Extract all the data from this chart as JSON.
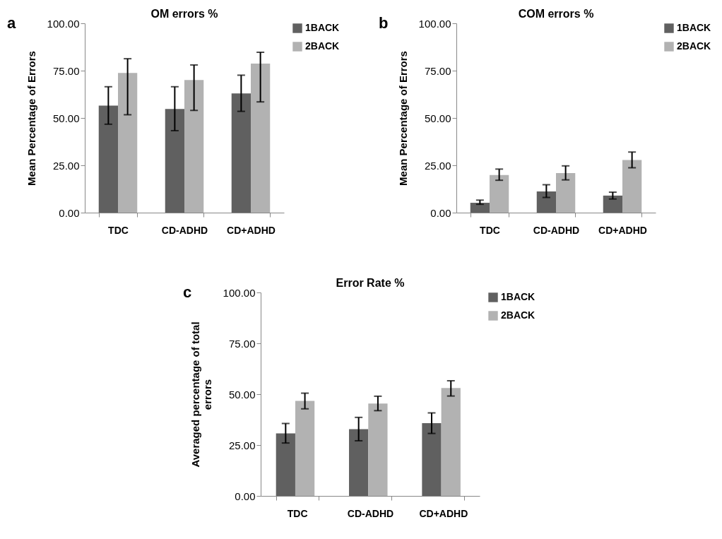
{
  "chart_data": [
    {
      "type": "bar",
      "title": "OM errors %",
      "ylabel": "Mean Percentage of Errors",
      "categories": [
        "TDC",
        "CD-ADHD",
        "CD+ADHD"
      ],
      "series": [
        {
          "name": "1BACK",
          "color": "#606060",
          "values": [
            56.5,
            54.8,
            63.0
          ],
          "errors": [
            [
              46.7,
              66.5
            ],
            [
              43.3,
              66.5
            ],
            [
              53.5,
              72.6
            ]
          ]
        },
        {
          "name": "2BACK",
          "color": "#b2b2b2",
          "values": [
            73.8,
            70.1,
            78.7
          ],
          "errors": [
            [
              51.7,
              81.3
            ],
            [
              54.0,
              78.0
            ],
            [
              58.5,
              84.7
            ]
          ]
        }
      ],
      "ylim": [
        0,
        100
      ],
      "yticks": [
        {
          "value": 0,
          "label": "0.00"
        },
        {
          "value": 25,
          "label": "25.00"
        },
        {
          "value": 50,
          "label": "50.00"
        },
        {
          "value": 75,
          "label": "75.00"
        },
        {
          "value": 100,
          "label": "100.00"
        }
      ],
      "grid": false,
      "legend": "right",
      "annotations": [
        "a"
      ]
    },
    {
      "type": "bar",
      "title": "COM errors %",
      "ylabel": "Mean Percentage of Errors",
      "categories": [
        "TDC",
        "CD-ADHD",
        "CD+ADHD"
      ],
      "series": [
        {
          "name": "1BACK",
          "color": "#606060",
          "values": [
            5.2,
            11.2,
            9.0
          ],
          "errors": [
            [
              4.4,
              6.6
            ],
            [
              8.0,
              14.7
            ],
            [
              7.2,
              10.8
            ]
          ]
        },
        {
          "name": "2BACK",
          "color": "#b2b2b2",
          "values": [
            19.9,
            20.9,
            27.8
          ],
          "errors": [
            [
              17.1,
              23.0
            ],
            [
              17.3,
              24.7
            ],
            [
              23.7,
              32.0
            ]
          ]
        }
      ],
      "ylim": [
        0,
        100
      ],
      "yticks": [
        {
          "value": 0,
          "label": "0.00"
        },
        {
          "value": 25,
          "label": "25.00"
        },
        {
          "value": 50,
          "label": "50.00"
        },
        {
          "value": 75,
          "label": "75.00"
        },
        {
          "value": 100,
          "label": "100.00"
        }
      ],
      "grid": false,
      "legend": "right",
      "annotations": [
        "b"
      ]
    },
    {
      "type": "bar",
      "title": "Error Rate %",
      "ylabel": "Averaged percentage of total errors",
      "categories": [
        "TDC",
        "CD-ADHD",
        "CD+ADHD"
      ],
      "series": [
        {
          "name": "1BACK",
          "color": "#606060",
          "values": [
            30.7,
            32.8,
            35.8
          ],
          "errors": [
            [
              26.0,
              35.6
            ],
            [
              27.1,
              38.6
            ],
            [
              30.7,
              40.8
            ]
          ]
        },
        {
          "name": "2BACK",
          "color": "#b2b2b2",
          "values": [
            46.7,
            45.4,
            53.0
          ],
          "errors": [
            [
              42.8,
              50.5
            ],
            [
              41.9,
              49.0
            ],
            [
              49.1,
              56.6
            ]
          ]
        }
      ],
      "ylim": [
        0,
        100
      ],
      "yticks": [
        {
          "value": 0,
          "label": "0.00"
        },
        {
          "value": 25,
          "label": "25.00"
        },
        {
          "value": 50,
          "label": "50.00"
        },
        {
          "value": 75,
          "label": "75.00"
        },
        {
          "value": 100,
          "label": "100.00"
        }
      ],
      "grid": false,
      "legend": "right",
      "annotations": [
        "c"
      ]
    }
  ]
}
